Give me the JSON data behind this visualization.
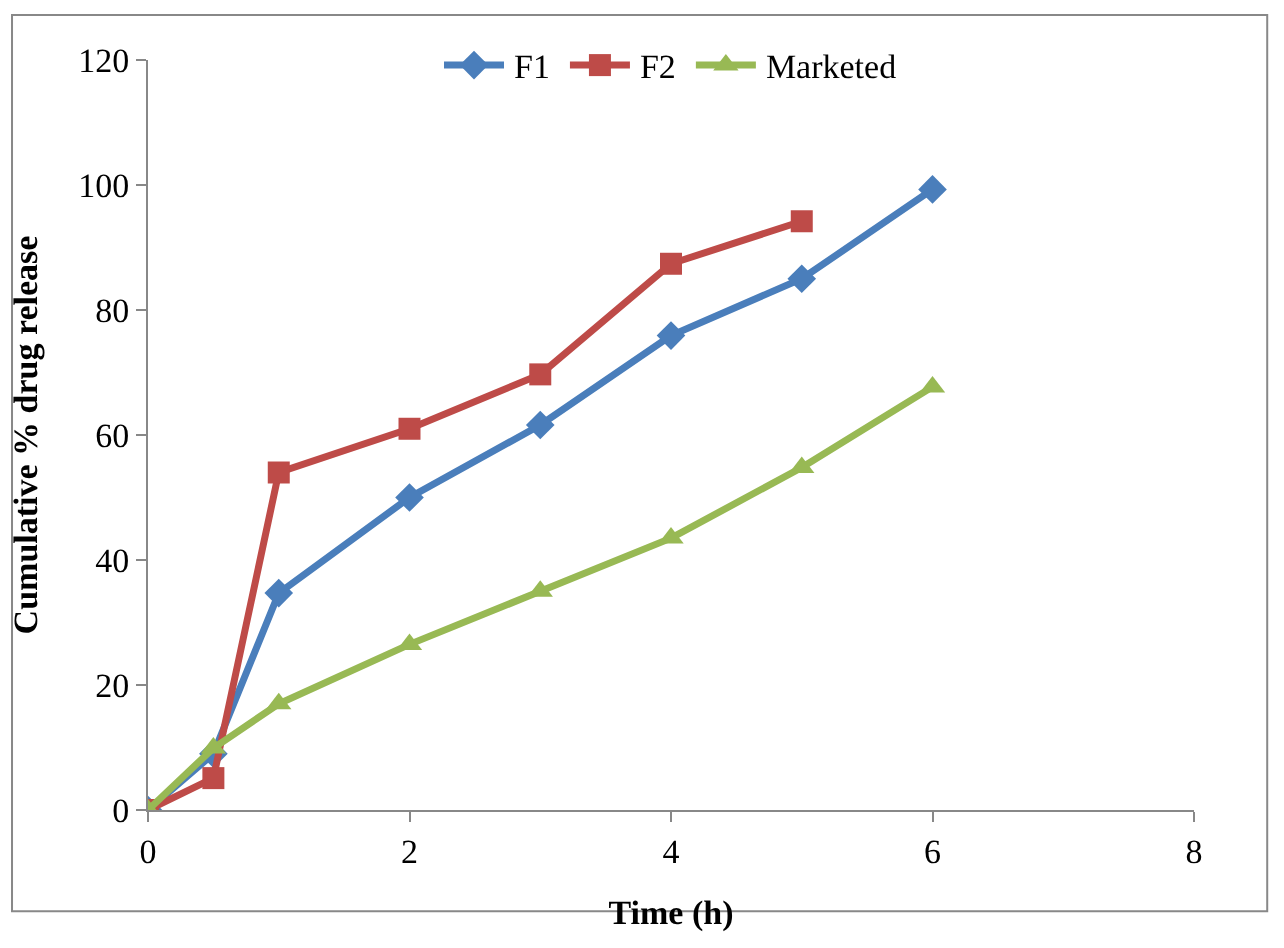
{
  "chart_data": {
    "type": "line",
    "xlabel": "Time (h)",
    "ylabel": "Cumulative % drug release",
    "xlim": [
      0,
      8
    ],
    "xticks": [
      0,
      2,
      4,
      6,
      8
    ],
    "ylim": [
      0,
      120
    ],
    "yticks": [
      0,
      20,
      40,
      60,
      80,
      100,
      120
    ],
    "grid": false,
    "legend": "top",
    "line_style": "solid",
    "series": [
      {
        "name": "F1",
        "color": "#4a7ebb",
        "marker": "diamond",
        "x": [
          0,
          0.5,
          1,
          2,
          3,
          4,
          5,
          6
        ],
        "values": [
          0,
          9,
          34.7,
          50,
          61.6,
          75.9,
          85,
          99.3
        ]
      },
      {
        "name": "F2",
        "color": "#be4b48",
        "marker": "square",
        "x": [
          0,
          0.5,
          1,
          2,
          3,
          4,
          5
        ],
        "values": [
          0,
          5.1,
          54,
          61,
          69.7,
          87.4,
          94.2
        ]
      },
      {
        "name": "Marketed",
        "color": "#98b954",
        "marker": "triangle",
        "x": [
          0,
          0.5,
          1,
          2,
          3,
          4,
          5,
          6
        ],
        "values": [
          0,
          9.9,
          17,
          26.5,
          35,
          43.5,
          54.8,
          67.7
        ]
      }
    ]
  }
}
